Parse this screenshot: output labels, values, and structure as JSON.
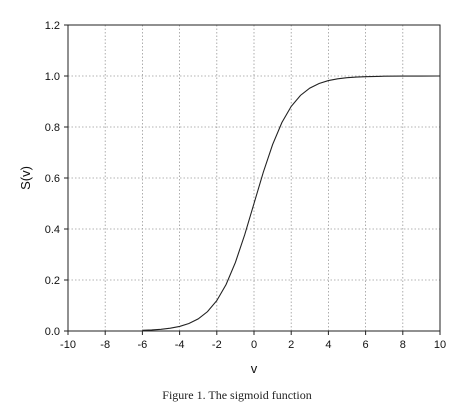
{
  "chart_data": {
    "type": "line",
    "title": "",
    "xlabel": "v",
    "ylabel": "S(v)",
    "xlim": [
      -10,
      10
    ],
    "ylim": [
      0.0,
      1.2
    ],
    "xticks": [
      -10,
      -8,
      -6,
      -4,
      -2,
      0,
      2,
      4,
      6,
      8,
      10
    ],
    "xtick_labels": [
      "-10",
      "-8",
      "-6",
      "-4",
      "-2",
      "0",
      "2",
      "4",
      "6",
      "8",
      "10"
    ],
    "yticks": [
      0.0,
      0.2,
      0.4,
      0.6,
      0.8,
      1.0,
      1.2
    ],
    "ytick_labels": [
      "0.0",
      "0.2",
      "0.4",
      "0.6",
      "0.8",
      "1.0",
      "1.2"
    ],
    "grid": true,
    "legend": "none",
    "series": [
      {
        "color": "#222222",
        "x": [
          -6,
          -5.5,
          -5,
          -4.5,
          -4,
          -3.5,
          -3,
          -2.5,
          -2,
          -1.5,
          -1,
          -0.5,
          0,
          0.5,
          1,
          1.5,
          2,
          2.5,
          3,
          3.5,
          4,
          4.5,
          5,
          5.5,
          6,
          7,
          8,
          9,
          10
        ],
        "y": [
          0.0025,
          0.0041,
          0.0067,
          0.011,
          0.018,
          0.0293,
          0.0474,
          0.0759,
          0.1192,
          0.1824,
          0.2689,
          0.3775,
          0.5,
          0.6225,
          0.7311,
          0.8176,
          0.8808,
          0.9241,
          0.9526,
          0.9707,
          0.982,
          0.989,
          0.9933,
          0.9959,
          0.9975,
          0.9991,
          0.9997,
          0.9999,
          1.0
        ]
      }
    ]
  },
  "caption": "Figure 1. The sigmoid function"
}
